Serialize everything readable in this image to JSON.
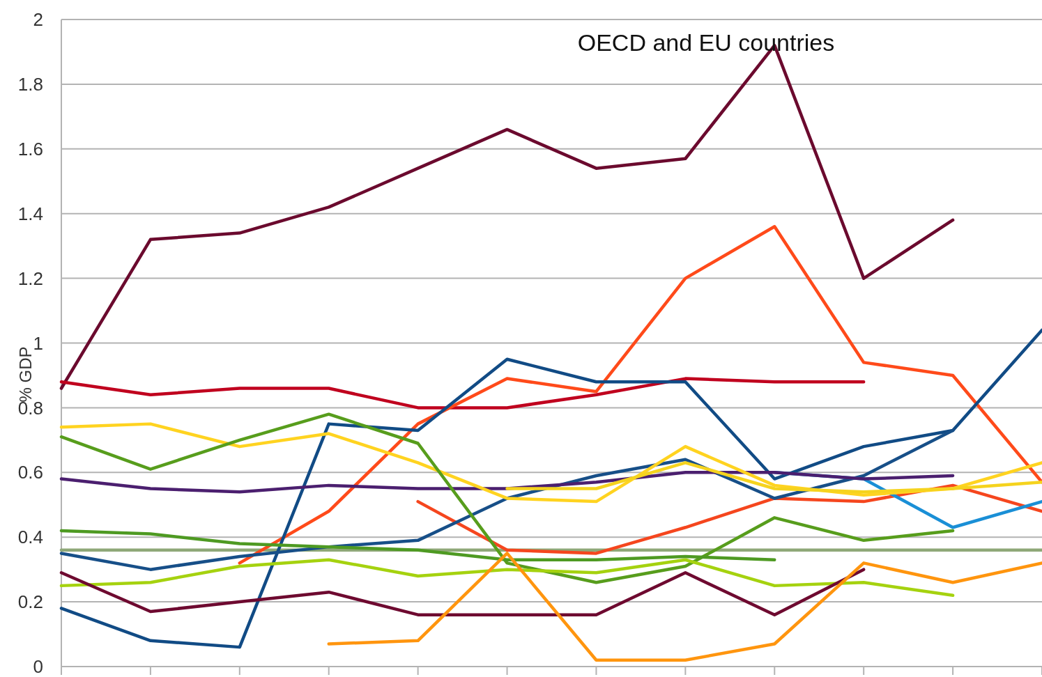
{
  "chart_data": {
    "type": "line",
    "title": "OECD and EU countries",
    "ylabel": "% GDP",
    "categories": [
      null,
      null,
      null,
      null,
      null,
      null,
      null,
      null,
      null,
      null,
      null,
      null
    ],
    "ylim": [
      0,
      2
    ],
    "yticks": [
      0,
      0.2,
      0.4,
      0.6,
      0.8,
      1,
      1.2,
      1.4,
      1.6,
      1.8,
      2
    ],
    "grid": "y",
    "tick_labels": "y",
    "marker": "none",
    "line_style": "solid",
    "series": [
      {
        "color": "#8fa878",
        "values": [
          0.36,
          0.36,
          0.36,
          0.36,
          0.36,
          0.36,
          0.36,
          0.36,
          0.36,
          0.36,
          0.36,
          0.36
        ]
      },
      {
        "color": "#6b0a2e",
        "values": [
          0.86,
          1.32,
          1.34,
          1.42,
          1.54,
          1.66,
          1.54,
          1.57,
          1.92,
          1.2,
          1.38,
          null
        ]
      },
      {
        "color": "#c0001e",
        "values": [
          0.88,
          0.84,
          0.86,
          0.86,
          0.8,
          0.8,
          0.84,
          0.89,
          0.88,
          0.88,
          null,
          null
        ]
      },
      {
        "color": "#ff4a1a",
        "values": [
          null,
          null,
          0.32,
          0.48,
          0.75,
          0.89,
          0.85,
          1.2,
          1.36,
          0.94,
          0.9,
          0.57
        ]
      },
      {
        "color": "#f5461e",
        "values": [
          null,
          null,
          null,
          null,
          0.51,
          0.36,
          0.35,
          0.43,
          0.52,
          0.51,
          0.56,
          0.48
        ]
      },
      {
        "color": "#114b85",
        "values": [
          0.18,
          0.08,
          0.06,
          0.75,
          0.73,
          0.95,
          0.88,
          0.88,
          0.58,
          0.68,
          0.73,
          1.04
        ]
      },
      {
        "color": "#174f88",
        "values": [
          0.35,
          0.3,
          0.34,
          0.37,
          0.39,
          0.52,
          0.59,
          0.64,
          0.52,
          0.59,
          0.73,
          null
        ]
      },
      {
        "color": "#1a8fd6",
        "values": [
          null,
          null,
          null,
          null,
          null,
          null,
          null,
          null,
          0.6,
          0.58,
          0.43,
          0.51
        ]
      },
      {
        "color": "#4b1f6f",
        "values": [
          0.58,
          0.55,
          0.54,
          0.56,
          0.55,
          0.55,
          0.57,
          0.6,
          0.6,
          0.58,
          0.59,
          null
        ]
      },
      {
        "color": "#ffd320",
        "values": [
          0.74,
          0.75,
          0.68,
          0.72,
          0.63,
          0.52,
          0.51,
          0.68,
          0.56,
          0.53,
          0.55,
          0.63
        ]
      },
      {
        "color": "#f5d31e",
        "values": [
          null,
          null,
          null,
          null,
          null,
          0.55,
          0.55,
          0.63,
          0.55,
          0.54,
          0.55,
          0.57
        ]
      },
      {
        "color": "#579d1c",
        "values": [
          0.71,
          0.61,
          0.7,
          0.78,
          0.69,
          0.32,
          0.26,
          0.31,
          0.46,
          0.39,
          0.42,
          null
        ]
      },
      {
        "color": "#4e9a22",
        "values": [
          0.42,
          0.41,
          0.38,
          0.37,
          0.36,
          0.33,
          0.33,
          0.34,
          0.33,
          null,
          null,
          null
        ]
      },
      {
        "color": "#a5d20f",
        "values": [
          0.25,
          0.26,
          0.31,
          0.33,
          0.28,
          0.3,
          0.29,
          0.33,
          0.25,
          0.26,
          0.22,
          null
        ]
      },
      {
        "color": "#6e0a30",
        "values": [
          0.29,
          0.17,
          0.2,
          0.23,
          0.16,
          0.16,
          0.16,
          0.29,
          0.16,
          0.3,
          null,
          null
        ]
      },
      {
        "color": "#ff950e",
        "values": [
          null,
          null,
          null,
          0.07,
          0.08,
          0.35,
          0.02,
          0.02,
          0.07,
          0.32,
          0.26,
          0.32
        ]
      }
    ]
  }
}
